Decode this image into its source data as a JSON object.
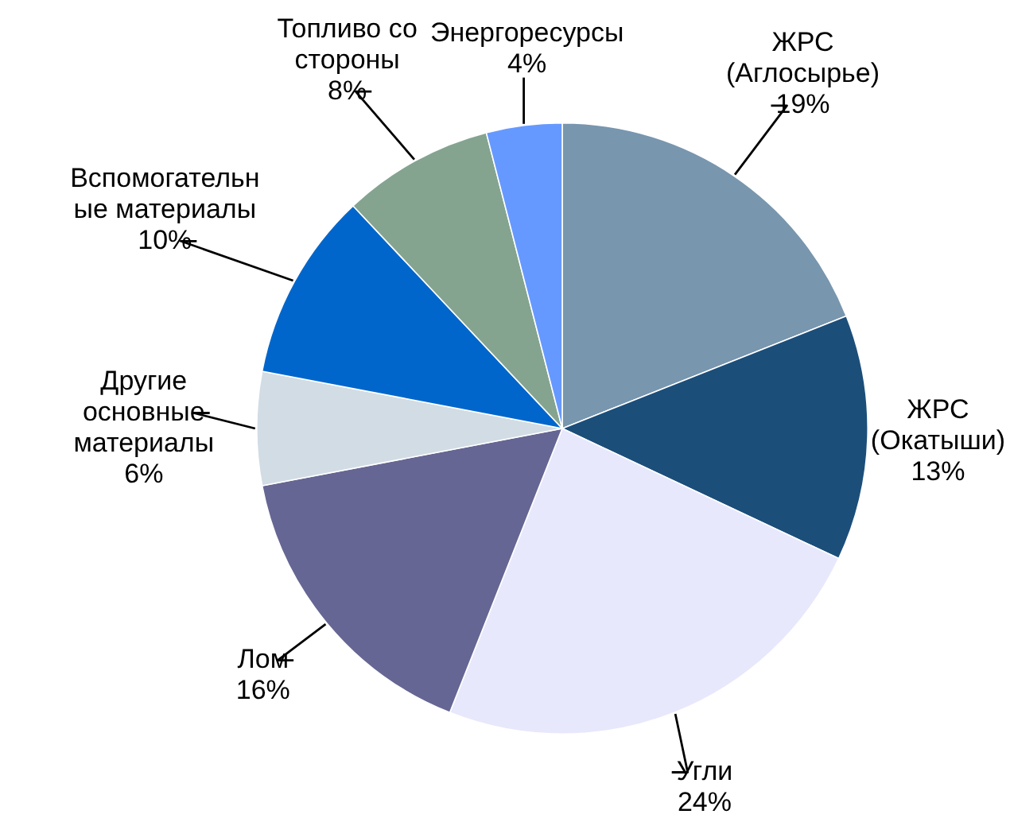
{
  "chart_data": {
    "type": "pie",
    "categories": [
      "ЖРС (Аглосырье)",
      "ЖРС (Окатыши)",
      "Угли",
      "Лом",
      "Другие основные материалы",
      "Вспомогательные материалы",
      "Топливо со стороны",
      "Энергоресурсы"
    ],
    "values": [
      19,
      13,
      24,
      16,
      6,
      10,
      8,
      4
    ],
    "colors": [
      "#7896ae",
      "#1c4e7a",
      "#e8e8fc",
      "#666694",
      "#d2dce4",
      "#0066cc",
      "#84a490",
      "#6699ff"
    ],
    "value_labels": [
      "19%",
      "13%",
      "24%",
      "16%",
      "6%",
      "10%",
      "8%",
      "4%"
    ]
  }
}
